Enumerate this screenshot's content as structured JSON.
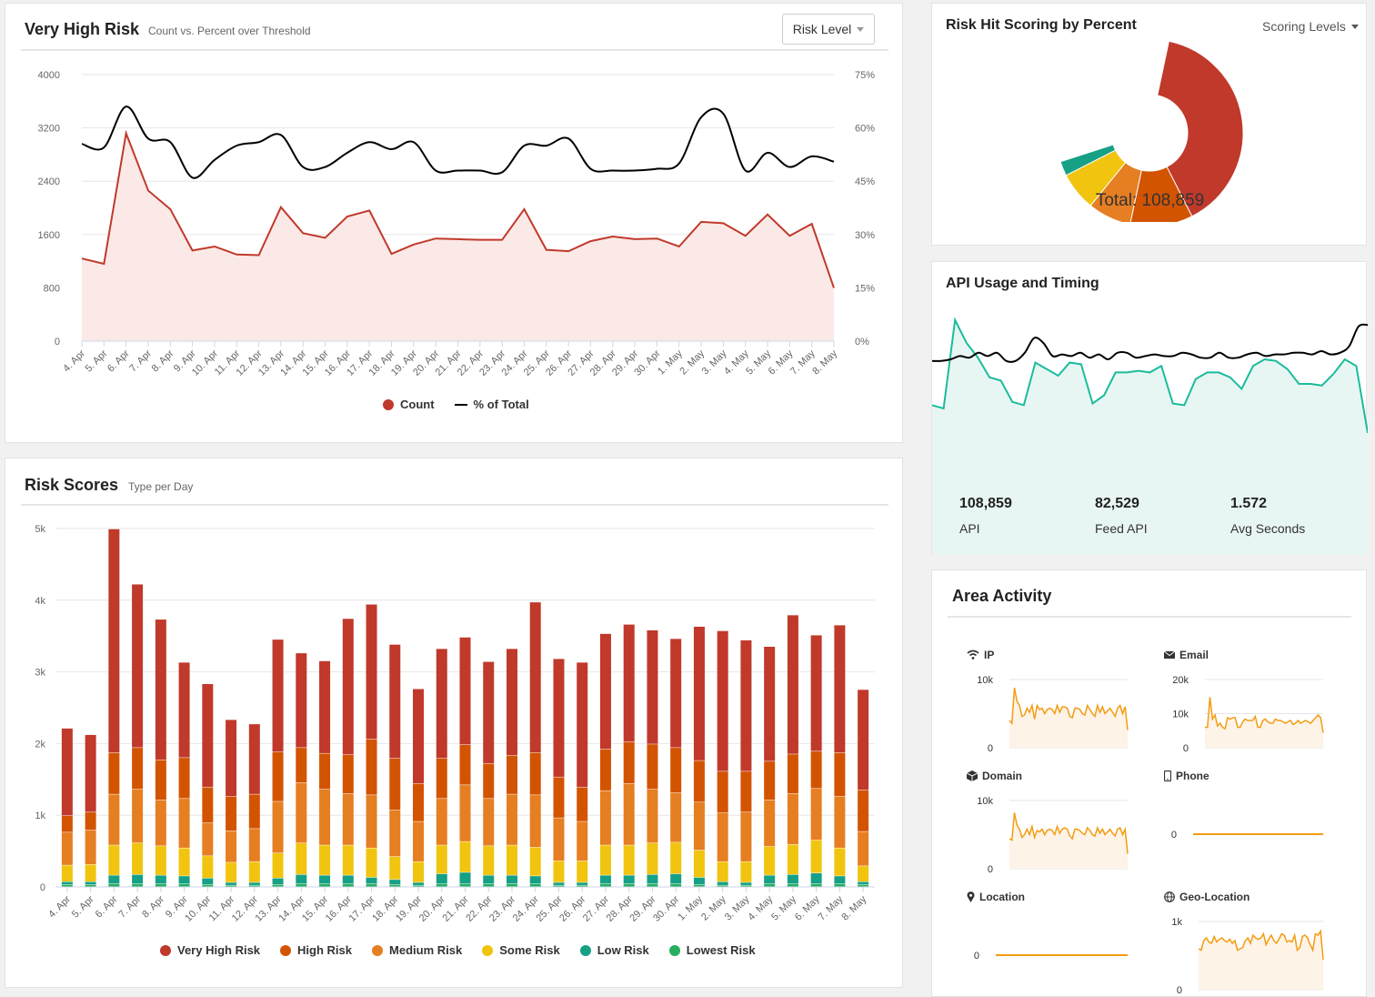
{
  "colors": {
    "very_high": "#c0392b",
    "high": "#d35400",
    "medium": "#e67e22",
    "some": "#f1c40f",
    "low": "#16a085",
    "lowest": "#27ae60",
    "api_teal": "#1abc9c",
    "area_orange": "#f39c12"
  },
  "very_high_risk": {
    "title": "Very High Risk",
    "subtitle": "Count vs. Percent over Threshold",
    "button_label": "Risk Level",
    "legend": {
      "count": "Count",
      "pct": "% of Total"
    }
  },
  "risk_hit": {
    "title": "Risk Hit Scoring by Percent",
    "dropdown_label": "Scoring Levels",
    "total_label": "Total: 108,859"
  },
  "api": {
    "title": "API Usage and Timing",
    "stats": [
      {
        "value": "108,859",
        "label": "API"
      },
      {
        "value": "82,529",
        "label": "Feed API"
      },
      {
        "value": "1.572",
        "label": "Avg Seconds"
      }
    ]
  },
  "risk_scores": {
    "title": "Risk Scores",
    "subtitle": "Type per Day"
  },
  "area_activity": {
    "title": "Area Activity",
    "items": [
      {
        "label": "IP",
        "icon": "wifi-icon"
      },
      {
        "label": "Email",
        "icon": "envelope-icon"
      },
      {
        "label": "Domain",
        "icon": "cube-icon"
      },
      {
        "label": "Phone",
        "icon": "mobile-phone-icon"
      },
      {
        "label": "Location",
        "icon": "map-marker-icon"
      },
      {
        "label": "Geo-Location",
        "icon": "globe-icon"
      }
    ]
  },
  "chart_data": [
    {
      "id": "very_high_risk",
      "type": "line",
      "title": "Very High Risk",
      "x": [
        "4. Apr",
        "5. Apr",
        "6. Apr",
        "7. Apr",
        "8. Apr",
        "9. Apr",
        "10. Apr",
        "11. Apr",
        "12. Apr",
        "13. Apr",
        "14. Apr",
        "15. Apr",
        "16. Apr",
        "17. Apr",
        "18. Apr",
        "19. Apr",
        "20. Apr",
        "21. Apr",
        "22. Apr",
        "23. Apr",
        "24. Apr",
        "25. Apr",
        "26. Apr",
        "27. Apr",
        "28. Apr",
        "29. Apr",
        "30. Apr",
        "1. May",
        "2. May",
        "3. May",
        "4. May",
        "5. May",
        "6. May",
        "7. May",
        "8. May"
      ],
      "series": [
        {
          "name": "Count",
          "axis": "left",
          "style": "area",
          "values": [
            1240,
            1160,
            3120,
            2260,
            1980,
            1360,
            1420,
            1300,
            1290,
            2010,
            1620,
            1550,
            1870,
            1960,
            1310,
            1450,
            1540,
            1530,
            1520,
            1520,
            1980,
            1370,
            1350,
            1500,
            1570,
            1530,
            1540,
            1420,
            1790,
            1770,
            1580,
            1900,
            1580,
            1760,
            800
          ]
        },
        {
          "name": "% of Total",
          "axis": "right",
          "style": "line",
          "values": [
            55.5,
            54.5,
            66,
            57,
            56,
            46,
            51,
            55,
            56,
            58,
            49,
            49,
            53,
            56,
            54,
            56,
            48,
            48,
            48,
            47.5,
            55,
            55,
            57,
            48.5,
            48,
            48,
            48.5,
            50,
            63,
            64,
            48,
            53,
            49,
            52,
            50.5
          ]
        }
      ],
      "yaxis_left": {
        "range": [
          0,
          4000
        ],
        "ticks": [
          0,
          800,
          1600,
          2400,
          3200,
          4000
        ]
      },
      "yaxis_right": {
        "range": [
          0,
          75
        ],
        "ticks": [
          "0%",
          "15%",
          "30%",
          "45%",
          "60%",
          "75%"
        ]
      },
      "grid": true,
      "legend_position": "bottom"
    },
    {
      "id": "risk_hit_scoring",
      "type": "pie",
      "title": "Risk Hit Scoring by Percent",
      "style": "semi-donut",
      "slices": [
        {
          "name": "Very High Risk",
          "value": 47
        },
        {
          "name": "High Risk",
          "value": 13
        },
        {
          "name": "Medium Risk",
          "value": 9
        },
        {
          "name": "Some Risk",
          "value": 8
        },
        {
          "name": "Low Risk",
          "value": 3
        }
      ],
      "total": 108859
    },
    {
      "id": "api_usage",
      "type": "area",
      "title": "API Usage and Timing",
      "series": [
        {
          "name": "API",
          "style": "line",
          "color": "#000",
          "values": [
            0.69,
            0.69,
            0.7,
            0.72,
            0.71,
            0.74,
            0.72,
            0.74,
            0.69,
            0.69,
            0.74,
            0.83,
            0.8,
            0.72,
            0.73,
            0.72,
            0.74,
            0.71,
            0.73,
            0.7,
            0.74,
            0.74,
            0.71,
            0.72,
            0.73,
            0.72,
            0.72,
            0.74,
            0.73,
            0.71,
            0.71,
            0.74,
            0.71,
            0.71,
            0.73,
            0.74,
            0.72,
            0.73,
            0.73,
            0.74,
            0.74,
            0.73,
            0.75,
            0.73,
            0.74,
            0.78,
            0.9,
            0.91
          ]
        },
        {
          "name": "Feed API",
          "style": "area",
          "color": "#1abc9c",
          "values": [
            0.42,
            0.4,
            0.94,
            0.8,
            0.71,
            0.59,
            0.57,
            0.44,
            0.42,
            0.68,
            0.64,
            0.6,
            0.68,
            0.67,
            0.43,
            0.48,
            0.62,
            0.62,
            0.63,
            0.62,
            0.66,
            0.43,
            0.42,
            0.58,
            0.62,
            0.62,
            0.59,
            0.52,
            0.66,
            0.7,
            0.69,
            0.64,
            0.55,
            0.55,
            0.54,
            0.61,
            0.7,
            0.66,
            0.25
          ]
        }
      ]
    },
    {
      "id": "risk_scores",
      "type": "bar",
      "stacked": true,
      "title": "Risk Scores",
      "categories": [
        "4. Apr",
        "5. Apr",
        "6. Apr",
        "7. Apr",
        "8. Apr",
        "9. Apr",
        "10. Apr",
        "11. Apr",
        "12. Apr",
        "13. Apr",
        "14. Apr",
        "15. Apr",
        "16. Apr",
        "17. Apr",
        "18. Apr",
        "19. Apr",
        "20. Apr",
        "21. Apr",
        "22. Apr",
        "23. Apr",
        "24. Apr",
        "25. Apr",
        "26. Apr",
        "27. Apr",
        "28. Apr",
        "29. Apr",
        "30. Apr",
        "1. May",
        "2. May",
        "3. May",
        "4. May",
        "5. May",
        "6. May",
        "7. May",
        "8. May"
      ],
      "series": [
        {
          "name": "Lowest Risk",
          "values": [
            30,
            30,
            40,
            40,
            40,
            40,
            30,
            20,
            20,
            30,
            40,
            40,
            40,
            40,
            30,
            20,
            40,
            40,
            40,
            40,
            40,
            20,
            20,
            40,
            40,
            40,
            40,
            30,
            20,
            20,
            40,
            40,
            40,
            40,
            30
          ]
        },
        {
          "name": "Low Risk",
          "values": [
            40,
            40,
            120,
            130,
            120,
            110,
            90,
            40,
            40,
            90,
            130,
            120,
            120,
            90,
            70,
            40,
            140,
            160,
            120,
            120,
            110,
            40,
            40,
            120,
            120,
            130,
            140,
            100,
            50,
            40,
            120,
            130,
            150,
            110,
            40
          ]
        },
        {
          "name": "Some Risk",
          "values": [
            230,
            240,
            420,
            440,
            410,
            390,
            310,
            280,
            290,
            350,
            440,
            420,
            420,
            410,
            320,
            290,
            400,
            430,
            410,
            420,
            400,
            300,
            300,
            420,
            420,
            440,
            440,
            380,
            280,
            290,
            400,
            420,
            460,
            390,
            220
          ]
        },
        {
          "name": "Medium Risk",
          "values": [
            460,
            480,
            710,
            750,
            640,
            690,
            460,
            440,
            460,
            720,
            840,
            780,
            720,
            740,
            650,
            560,
            650,
            790,
            660,
            710,
            730,
            600,
            550,
            760,
            860,
            750,
            690,
            670,
            680,
            690,
            650,
            710,
            720,
            720,
            480
          ]
        },
        {
          "name": "High Risk",
          "values": [
            230,
            250,
            580,
            580,
            560,
            570,
            500,
            480,
            480,
            690,
            490,
            500,
            540,
            780,
            720,
            530,
            560,
            560,
            490,
            540,
            590,
            570,
            480,
            580,
            580,
            630,
            630,
            580,
            580,
            570,
            540,
            550,
            520,
            610,
            580
          ]
        },
        {
          "name": "Very High Risk",
          "values": [
            1220,
            1080,
            3120,
            2280,
            1960,
            1330,
            1440,
            1070,
            980,
            1570,
            1320,
            1290,
            1900,
            1880,
            1590,
            1320,
            1530,
            1500,
            1420,
            1490,
            2100,
            1650,
            1740,
            1610,
            1640,
            1590,
            1520,
            1870,
            1960,
            1830,
            1600,
            1940,
            1620,
            1780,
            1400
          ]
        }
      ],
      "yaxis": {
        "range": [
          0,
          5000
        ],
        "ticks": [
          "0",
          "1k",
          "2k",
          "3k",
          "4k",
          "5k"
        ]
      },
      "grid": true,
      "legend_position": "bottom"
    },
    {
      "id": "area_ip",
      "type": "area",
      "title": "IP",
      "yaxis": {
        "ticks": [
          "0",
          "10k"
        ]
      },
      "values": [
        0.4,
        0.36,
        0.88,
        0.68,
        0.62,
        0.46,
        0.48,
        0.58,
        0.52,
        0.62,
        0.42,
        0.62,
        0.56,
        0.58,
        0.5,
        0.56,
        0.58,
        0.56,
        0.5,
        0.62,
        0.52,
        0.6,
        0.6,
        0.58,
        0.46,
        0.44,
        0.58,
        0.58,
        0.56,
        0.5,
        0.48,
        0.62,
        0.56,
        0.5,
        0.46,
        0.62,
        0.52,
        0.6,
        0.5,
        0.54,
        0.58,
        0.52,
        0.46,
        0.58,
        0.62,
        0.5,
        0.6,
        0.26
      ]
    },
    {
      "id": "area_email",
      "type": "area",
      "title": "Email",
      "yaxis": {
        "ticks": [
          "0",
          "10k",
          "20k"
        ]
      },
      "values": [
        0.3,
        0.3,
        0.74,
        0.42,
        0.48,
        0.32,
        0.36,
        0.3,
        0.28,
        0.44,
        0.42,
        0.44,
        0.44,
        0.3,
        0.3,
        0.38,
        0.42,
        0.4,
        0.4,
        0.4,
        0.46,
        0.3,
        0.3,
        0.4,
        0.42,
        0.38,
        0.36,
        0.36,
        0.42,
        0.4,
        0.4,
        0.38,
        0.36,
        0.38,
        0.4,
        0.34,
        0.36,
        0.4,
        0.36,
        0.38,
        0.4,
        0.38,
        0.36,
        0.4,
        0.44,
        0.48,
        0.44,
        0.22
      ]
    },
    {
      "id": "area_domain",
      "type": "area",
      "title": "Domain",
      "yaxis": {
        "ticks": [
          "0",
          "10k"
        ]
      },
      "values": [
        0.44,
        0.42,
        0.82,
        0.64,
        0.58,
        0.46,
        0.5,
        0.58,
        0.5,
        0.62,
        0.46,
        0.56,
        0.54,
        0.58,
        0.5,
        0.56,
        0.58,
        0.56,
        0.5,
        0.62,
        0.52,
        0.58,
        0.6,
        0.58,
        0.48,
        0.44,
        0.58,
        0.58,
        0.56,
        0.52,
        0.5,
        0.6,
        0.56,
        0.5,
        0.48,
        0.6,
        0.52,
        0.58,
        0.5,
        0.54,
        0.58,
        0.52,
        0.48,
        0.58,
        0.6,
        0.5,
        0.58,
        0.22
      ]
    },
    {
      "id": "area_phone",
      "type": "area",
      "title": "Phone",
      "yaxis": {
        "ticks": [
          "0"
        ]
      },
      "values": [
        0,
        0,
        0,
        0,
        0,
        0,
        0,
        0,
        0,
        0
      ]
    },
    {
      "id": "area_location",
      "type": "area",
      "title": "Location",
      "yaxis": {
        "ticks": [
          "0"
        ]
      },
      "values": [
        0,
        0,
        0,
        0,
        0,
        0,
        0,
        0,
        0,
        0
      ]
    },
    {
      "id": "area_geo",
      "type": "area",
      "title": "Geo-Location",
      "yaxis": {
        "ticks": [
          "0",
          "1k"
        ]
      },
      "values": [
        0.6,
        0.58,
        0.72,
        0.76,
        0.7,
        0.68,
        0.78,
        0.7,
        0.74,
        0.76,
        0.72,
        0.7,
        0.74,
        0.68,
        0.72,
        0.58,
        0.6,
        0.62,
        0.72,
        0.76,
        0.68,
        0.8,
        0.76,
        0.74,
        0.76,
        0.82,
        0.66,
        0.74,
        0.8,
        0.72,
        0.68,
        0.74,
        0.82,
        0.8,
        0.7,
        0.72,
        0.7,
        0.8,
        0.58,
        0.62,
        0.78,
        0.8,
        0.76,
        0.66,
        0.58,
        0.82,
        0.8,
        0.86,
        0.44
      ]
    }
  ]
}
